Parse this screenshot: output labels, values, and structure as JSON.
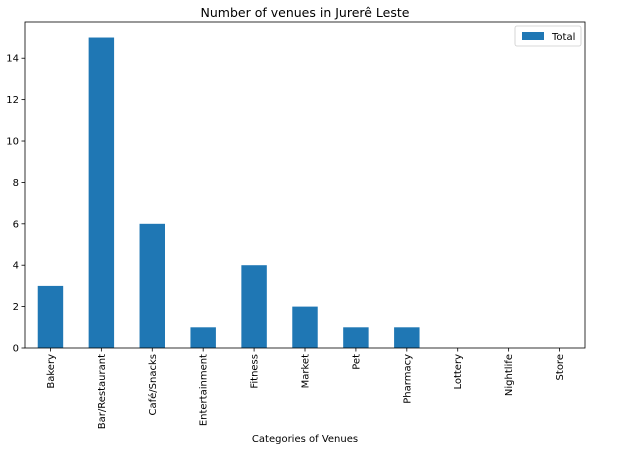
{
  "chart_data": {
    "type": "bar",
    "title": "Number of venues in Jurerê Leste",
    "xlabel": "Categories of Venues",
    "ylabel": "",
    "categories": [
      "Bakery",
      "Bar/Restaurant",
      "Café/Snacks",
      "Entertainment",
      "Fitness",
      "Market",
      "Pet",
      "Pharmacy",
      "Lottery",
      "Nightlife",
      "Store"
    ],
    "series": [
      {
        "name": "Total",
        "values": [
          3,
          15,
          6,
          1,
          4,
          2,
          1,
          1,
          0,
          0,
          0
        ],
        "color": "#1f77b4"
      }
    ],
    "ylim": [
      0,
      15.75
    ],
    "yticks": [
      0,
      2,
      4,
      6,
      8,
      10,
      12,
      14
    ],
    "grid": false,
    "legend": "top-right"
  }
}
